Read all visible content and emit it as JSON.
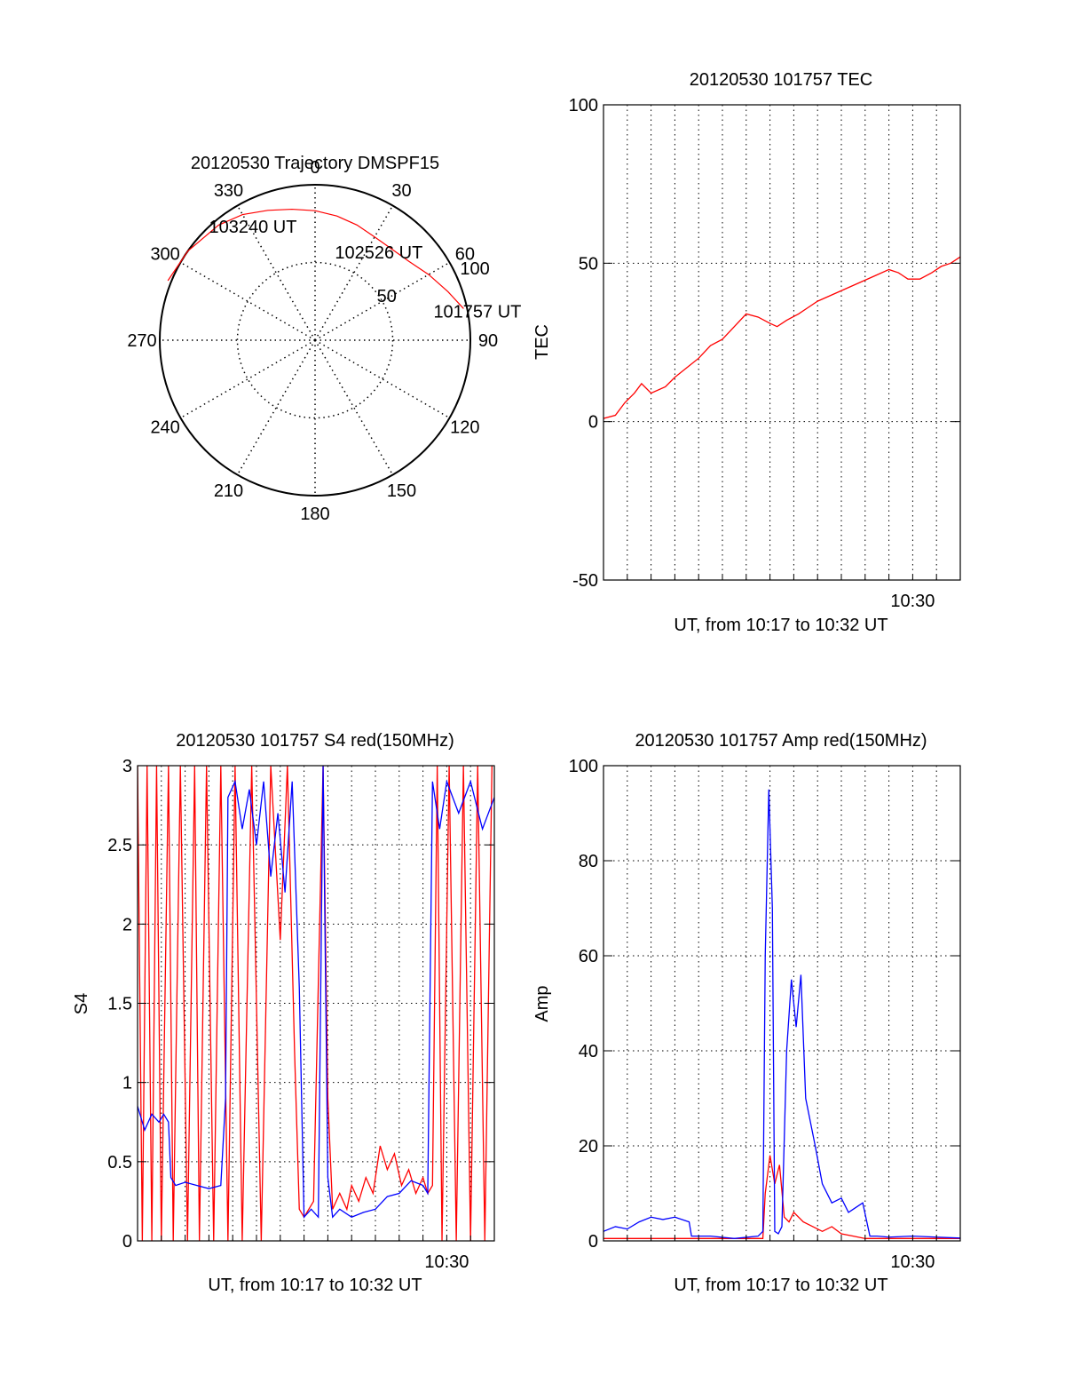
{
  "colors": {
    "red": "#ff0000",
    "blue": "#0000ff",
    "axis": "#000000"
  },
  "chart_data": [
    {
      "type": "polar",
      "title": "20120530 Trajectory DMSPF15",
      "azimuth_labels": [
        "0",
        "30",
        "60",
        "90",
        "120",
        "150",
        "180",
        "210",
        "240",
        "270",
        "300",
        "330"
      ],
      "radial_labels": [
        "50",
        "100"
      ],
      "trajectory": {
        "color": "#ff0000",
        "points": [
          [
            292,
            92
          ],
          [
            305,
            90
          ],
          [
            320,
            87
          ],
          [
            330,
            84
          ],
          [
            340,
            80
          ],
          [
            350,
            77
          ],
          [
            0,
            75
          ],
          [
            10,
            73
          ],
          [
            20,
            71
          ],
          [
            30,
            69
          ],
          [
            40,
            69
          ],
          [
            50,
            71
          ],
          [
            60,
            76
          ],
          [
            70,
            82
          ],
          [
            78,
            88
          ]
        ],
        "labels": [
          {
            "text": "103240 UT",
            "az": 330,
            "zen": 72
          },
          {
            "text": "102526 UT",
            "az": 38,
            "zen": 60
          },
          {
            "text": "101757 UT",
            "az": 82,
            "zen": 95
          }
        ]
      }
    },
    {
      "type": "line",
      "title": "20120530 101757 TEC",
      "xlabel": "UT, from 10:17 to 10:32 UT",
      "ylabel": "TEC",
      "ylim": [
        -50,
        100
      ],
      "yticks": [
        -50,
        0,
        50,
        100
      ],
      "xlim": [
        0,
        15
      ],
      "xticks": [
        {
          "value": 13,
          "label": "10:30"
        }
      ],
      "grid": true,
      "series": [
        {
          "color": "#ff0000",
          "x": [
            0.0,
            0.5,
            0.9,
            1.3,
            1.6,
            2.0,
            2.6,
            3.0,
            3.5,
            4.0,
            4.5,
            5.0,
            5.5,
            6.0,
            6.5,
            7.0,
            7.3,
            7.7,
            8.2,
            8.6,
            9.0,
            9.6,
            10.2,
            10.8,
            11.4,
            12.0,
            12.4,
            12.8,
            13.3,
            13.8,
            14.2,
            14.6,
            15.0
          ],
          "y": [
            1,
            2,
            6,
            9,
            12,
            9,
            11,
            14,
            17,
            20,
            24,
            26,
            30,
            34,
            33,
            31,
            30,
            32,
            34,
            36,
            38,
            40,
            42,
            44,
            46,
            48,
            47,
            45,
            45,
            47,
            49,
            50,
            52
          ]
        }
      ]
    },
    {
      "type": "line",
      "title": "20120530 101757 S4 red(150MHz)",
      "xlabel": "UT, from 10:17 to 10:32 UT",
      "ylabel": "S4",
      "ylim": [
        0,
        3
      ],
      "yticks": [
        0,
        0.5,
        1,
        1.5,
        2,
        2.5,
        3
      ],
      "xlim": [
        0,
        15
      ],
      "xticks": [
        {
          "value": 13,
          "label": "10:30"
        }
      ],
      "grid": true,
      "series": [
        {
          "color": "#ff0000",
          "x": [
            0,
            0.2,
            0.4,
            0.6,
            0.8,
            1.0,
            1.3,
            1.5,
            1.8,
            2.1,
            2.4,
            2.6,
            2.9,
            3.2,
            3.5,
            3.8,
            4.1,
            4.4,
            4.8,
            5.2,
            5.6,
            6.0,
            6.3,
            6.6,
            6.8,
            7.0,
            7.4,
            7.8,
            8.0,
            8.2,
            8.5,
            8.8,
            9.0,
            9.3,
            9.6,
            9.9,
            10.2,
            10.5,
            10.8,
            11.1,
            11.4,
            11.7,
            12.0,
            12.2,
            12.4,
            12.6,
            12.8,
            13.1,
            13.4,
            13.7,
            14.0,
            14.3,
            14.6,
            14.9
          ],
          "y": [
            3,
            0,
            3,
            0,
            3,
            0,
            3,
            0,
            3,
            0,
            3,
            0,
            3,
            0,
            3,
            0,
            3,
            0,
            3,
            0,
            3,
            1.9,
            3,
            1.2,
            0.2,
            0.15,
            0.25,
            3,
            0.9,
            0.2,
            0.3,
            0.2,
            0.35,
            0.25,
            0.4,
            0.3,
            0.6,
            0.45,
            0.55,
            0.35,
            0.45,
            0.3,
            0.4,
            0.3,
            0.35,
            3,
            0,
            3,
            0,
            3,
            0,
            3,
            0,
            3
          ]
        },
        {
          "color": "#0000ff",
          "x": [
            0,
            0.3,
            0.6,
            0.9,
            1.1,
            1.3,
            1.4,
            1.6,
            2.0,
            2.5,
            3.0,
            3.5,
            3.7,
            3.8,
            4.1,
            4.4,
            4.7,
            5.0,
            5.3,
            5.6,
            5.9,
            6.2,
            6.5,
            6.8,
            7.0,
            7.3,
            7.6,
            7.8,
            8.0,
            8.2,
            8.5,
            9.0,
            9.5,
            10.0,
            10.5,
            11.0,
            11.5,
            12.0,
            12.2,
            12.4,
            12.7,
            13.0,
            13.5,
            14.0,
            14.5,
            15.0
          ],
          "y": [
            0.85,
            0.7,
            0.8,
            0.75,
            0.8,
            0.75,
            0.4,
            0.35,
            0.37,
            0.35,
            0.33,
            0.35,
            0.9,
            2.8,
            2.9,
            2.6,
            2.85,
            2.5,
            2.9,
            2.3,
            2.7,
            2.2,
            2.9,
            1.6,
            0.15,
            0.2,
            0.15,
            3.0,
            0.4,
            0.15,
            0.2,
            0.15,
            0.18,
            0.2,
            0.28,
            0.3,
            0.38,
            0.35,
            0.3,
            2.9,
            2.6,
            2.9,
            2.7,
            2.9,
            2.6,
            2.8
          ]
        }
      ]
    },
    {
      "type": "line",
      "title": "20120530 101757 Amp red(150MHz)",
      "xlabel": "UT, from 10:17 to 10:32 UT",
      "ylabel": "Amp",
      "ylim": [
        0,
        100
      ],
      "yticks": [
        0,
        20,
        40,
        60,
        80,
        100
      ],
      "xlim": [
        0,
        15
      ],
      "xticks": [
        {
          "value": 13,
          "label": "10:30"
        }
      ],
      "grid": true,
      "series": [
        {
          "color": "#ff0000",
          "x": [
            0,
            3.6,
            6.7,
            6.8,
            7.0,
            7.2,
            7.4,
            7.6,
            7.8,
            8.0,
            8.4,
            8.8,
            9.2,
            9.6,
            10.0,
            10.5,
            11.0,
            15.0
          ],
          "y": [
            0.5,
            0.5,
            0.5,
            10,
            18,
            12,
            16,
            5,
            4,
            6,
            4,
            3,
            2,
            3,
            1.5,
            1,
            0.5,
            0.5
          ]
        },
        {
          "color": "#0000ff",
          "x": [
            0,
            0.5,
            1.0,
            1.5,
            2.0,
            2.5,
            3.0,
            3.6,
            3.7,
            4.5,
            5.5,
            6.5,
            6.7,
            6.8,
            6.95,
            7.1,
            7.2,
            7.35,
            7.5,
            7.7,
            7.9,
            8.1,
            8.3,
            8.5,
            8.7,
            8.9,
            9.2,
            9.6,
            10.0,
            10.3,
            10.6,
            10.9,
            11.2,
            11.5,
            12.0,
            13.0,
            14.0,
            15.0
          ],
          "y": [
            2,
            3,
            2.5,
            4,
            5,
            4.5,
            5,
            4,
            1,
            1,
            0.5,
            1,
            2,
            60,
            95,
            70,
            2,
            1.5,
            3,
            40,
            55,
            45,
            56,
            30,
            25,
            20,
            12,
            8,
            9,
            6,
            7,
            8,
            1,
            1,
            0.8,
            1,
            0.8,
            0.6
          ]
        }
      ]
    }
  ]
}
